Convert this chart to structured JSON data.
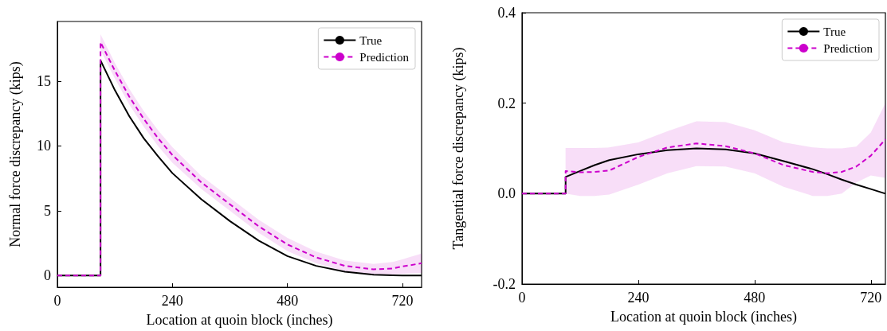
{
  "chart_data": [
    {
      "type": "line",
      "xlabel": "Location at quoin block (inches)",
      "ylabel": "Normal force discrepancy (kips)",
      "xlim": [
        0,
        760
      ],
      "xticks": [
        0,
        240,
        480,
        720
      ],
      "ylim": [
        -0.9,
        19.6
      ],
      "yticks": [
        0,
        5,
        10,
        15
      ],
      "grid": false,
      "legend": "top right",
      "marker": "none",
      "x": [
        0,
        90,
        90,
        120,
        150,
        180,
        210,
        240,
        300,
        360,
        420,
        480,
        540,
        600,
        660,
        700,
        720,
        760
      ],
      "series": [
        {
          "name": "True",
          "color": "#000000",
          "line_style": "solid",
          "values": [
            0,
            0,
            16.6,
            14.3,
            12.3,
            10.6,
            9.2,
            7.9,
            5.9,
            4.2,
            2.7,
            1.5,
            0.75,
            0.3,
            0.07,
            0.02,
            0,
            0
          ]
        },
        {
          "name": "Prediction",
          "color": "#cc00cc",
          "line_style": "dashed",
          "values": [
            0,
            0,
            18.0,
            15.8,
            13.8,
            12.1,
            10.6,
            9.3,
            7.2,
            5.5,
            3.8,
            2.4,
            1.4,
            0.75,
            0.48,
            0.55,
            0.7,
            0.95
          ],
          "lower": [
            null,
            null,
            17.4,
            15.2,
            13.2,
            11.5,
            10.0,
            8.7,
            6.7,
            5.0,
            3.3,
            1.9,
            0.95,
            0.35,
            0.1,
            0.1,
            0.15,
            0.2
          ],
          "upper": [
            null,
            null,
            18.6,
            16.4,
            14.4,
            12.7,
            11.2,
            9.9,
            7.7,
            6.0,
            4.3,
            2.9,
            1.85,
            1.15,
            0.9,
            1.05,
            1.25,
            1.7
          ]
        }
      ]
    },
    {
      "type": "line",
      "xlabel": "Location at quoin block (inches)",
      "ylabel": "Tangential force discrepancy (kips)",
      "xlim": [
        0,
        750
      ],
      "xticks": [
        0,
        240,
        480,
        720
      ],
      "ylim": [
        -0.2,
        0.4
      ],
      "yticks": [
        -0.2,
        {
          "value": 0,
          "label": "0.0"
        },
        0.2,
        0.4
      ],
      "grid": false,
      "legend": "top right",
      "marker": "none",
      "x": [
        0,
        90,
        90,
        120,
        150,
        180,
        240,
        300,
        360,
        420,
        480,
        540,
        600,
        630,
        660,
        690,
        720,
        750
      ],
      "series": [
        {
          "name": "True",
          "color": "#000000",
          "line_style": "solid",
          "values": [
            0,
            0,
            0.037,
            0.05,
            0.063,
            0.074,
            0.087,
            0.096,
            0.1,
            0.098,
            0.089,
            0.072,
            0.054,
            0.043,
            0.031,
            0.02,
            0.01,
            0
          ]
        },
        {
          "name": "Prediction",
          "color": "#cc00cc",
          "line_style": "dashed",
          "values": [
            0,
            0,
            0.05,
            0.047,
            0.048,
            0.051,
            0.081,
            0.102,
            0.111,
            0.105,
            0.089,
            0.063,
            0.048,
            0.045,
            0.048,
            0.06,
            0.084,
            0.12
          ],
          "lower": [
            null,
            null,
            0.0,
            -0.005,
            -0.005,
            -0.002,
            0.02,
            0.045,
            0.061,
            0.06,
            0.045,
            0.015,
            -0.005,
            -0.005,
            0.0,
            0.025,
            0.04,
            0.035
          ],
          "upper": [
            null,
            null,
            0.101,
            0.101,
            0.101,
            0.102,
            0.113,
            0.138,
            0.16,
            0.158,
            0.14,
            0.113,
            0.102,
            0.1,
            0.1,
            0.104,
            0.135,
            0.2
          ]
        }
      ]
    }
  ]
}
